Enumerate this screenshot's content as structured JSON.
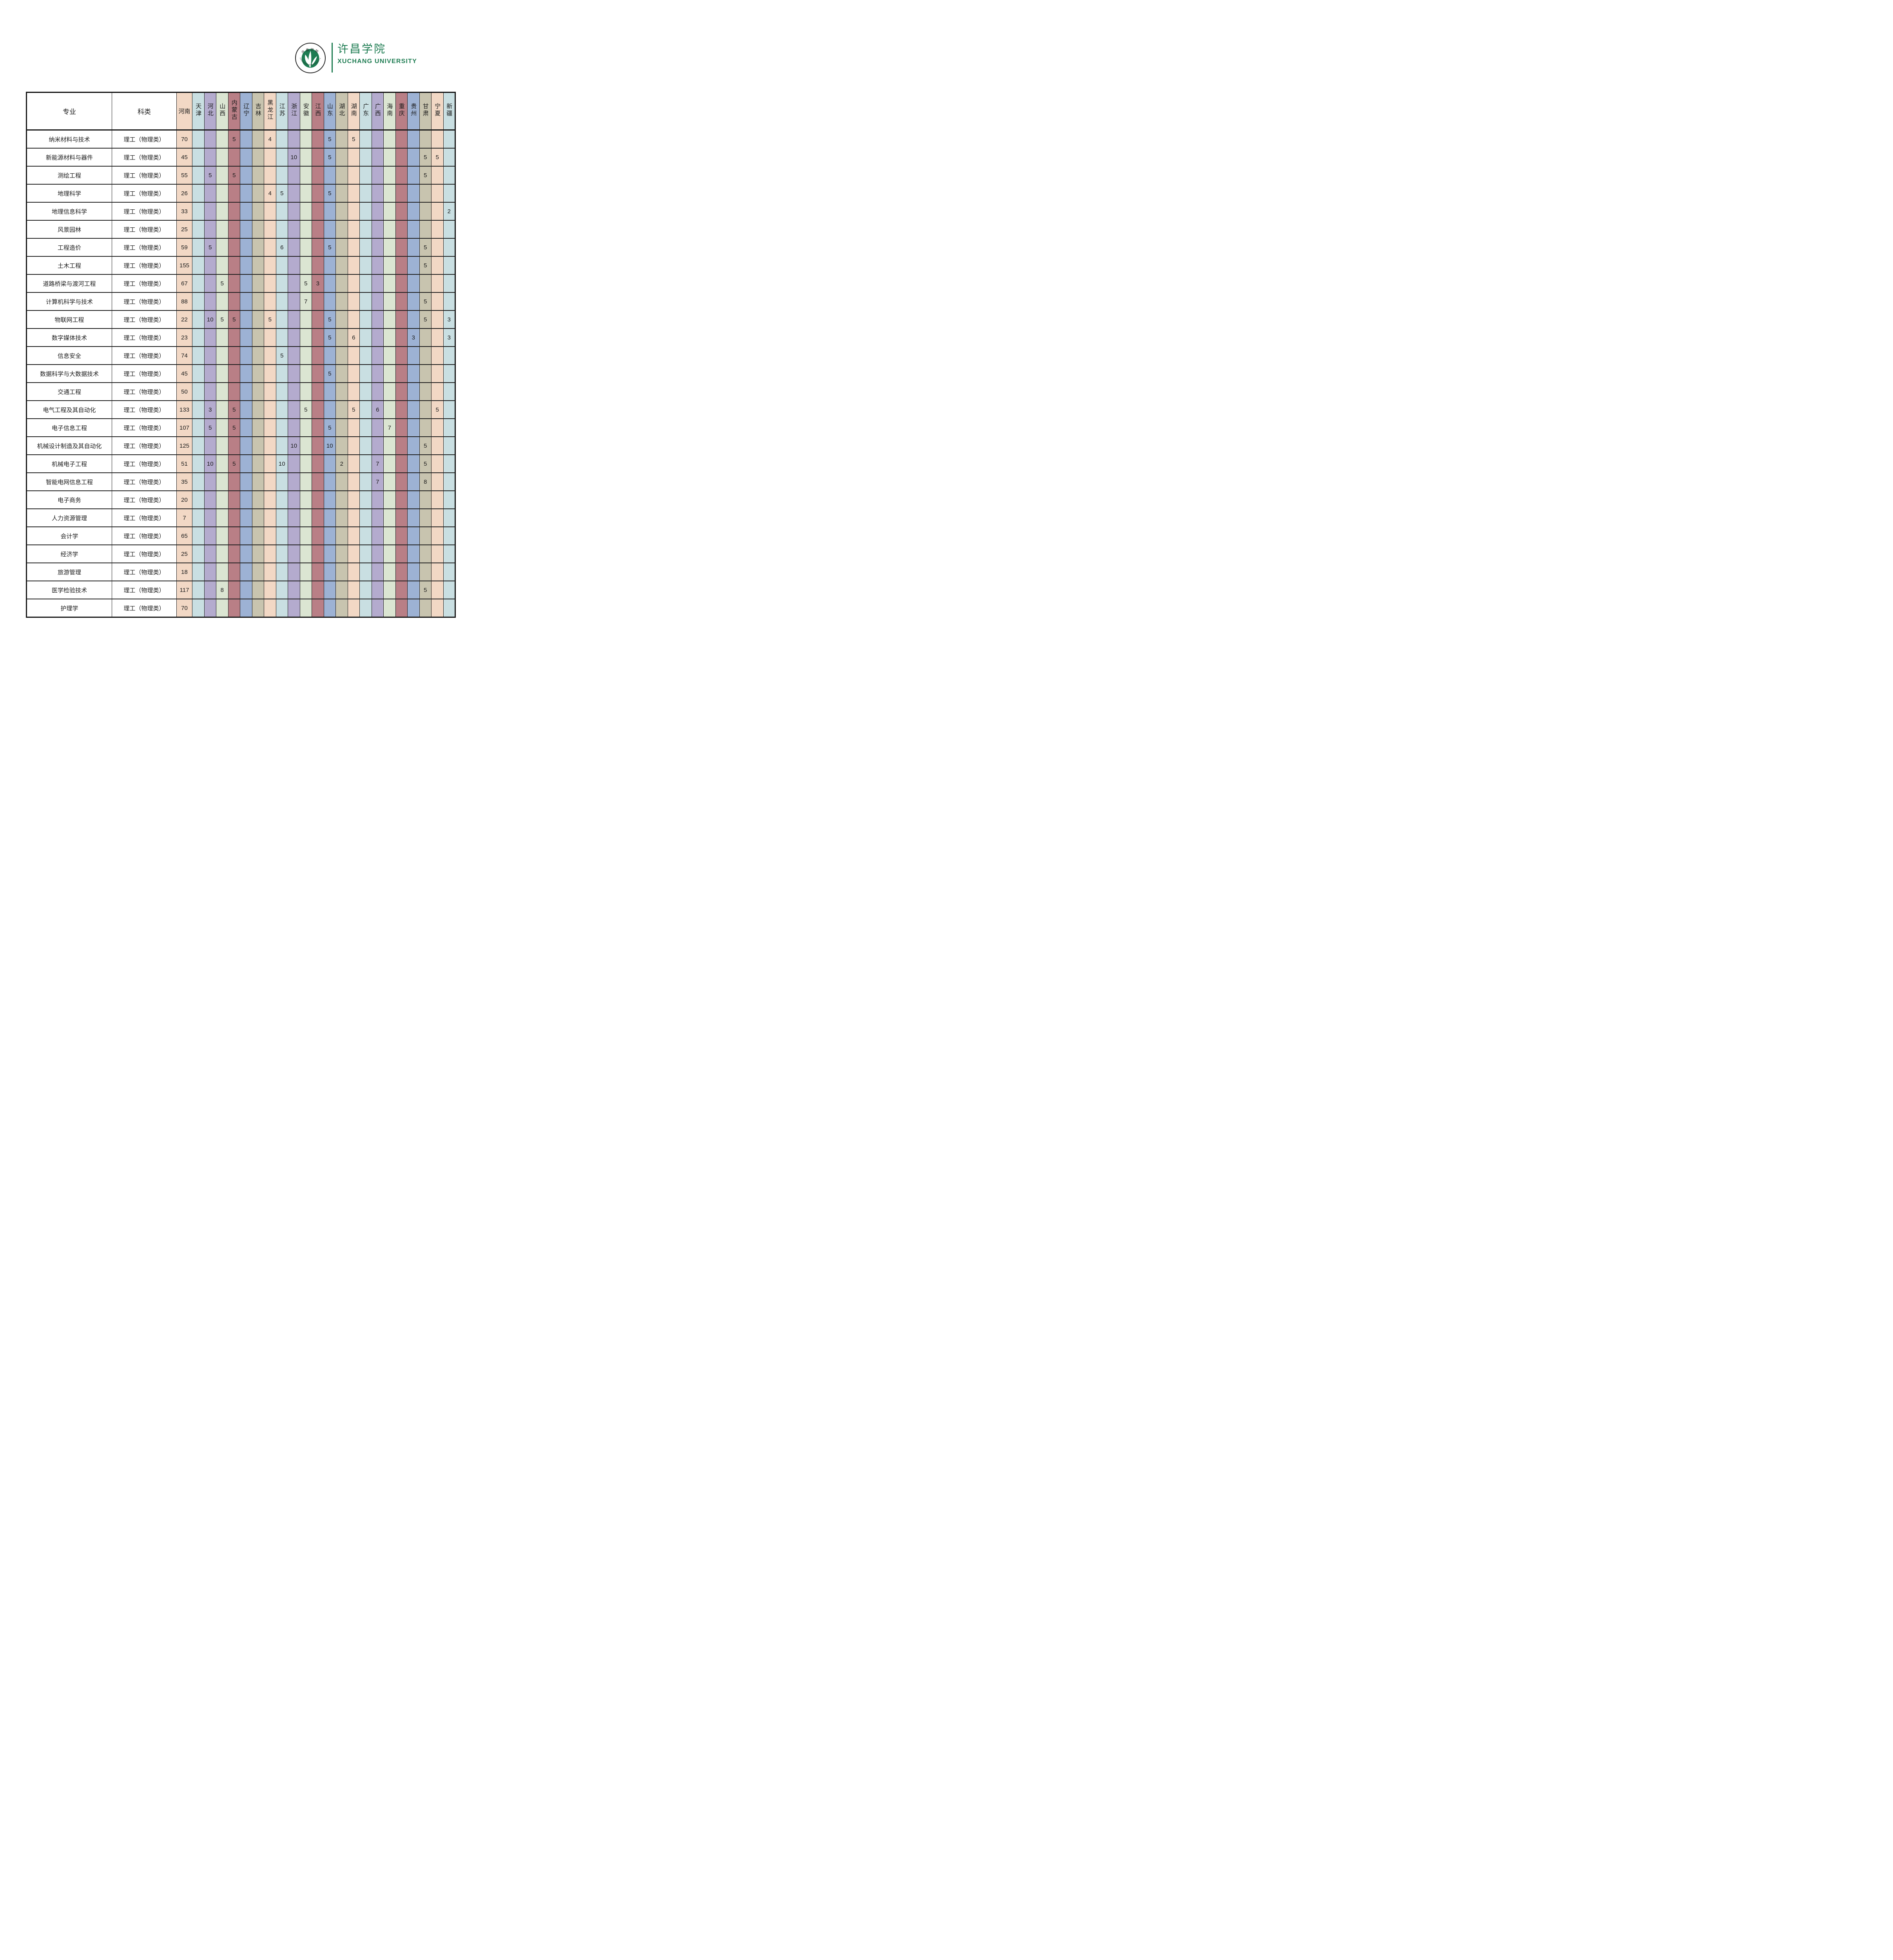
{
  "logo": {
    "university_name_zh": "许昌学院",
    "university_name_en": "XUCHANG UNIVERSITY",
    "seal_text_top": "许昌学院",
    "seal_text_bottom": "XUCHANG UNIVERSITY",
    "brand_green": "#1e7c52"
  },
  "table": {
    "headers": {
      "major": "专业",
      "category": "科类"
    },
    "palette": {
      "peach": "#f2d8c5",
      "cyan": "#c9dfe2",
      "purple": "#b4abce",
      "green": "#dbe5d2",
      "red": "#b97f86",
      "blue": "#9db2d4",
      "khaki": "#c8c4af"
    },
    "grid_color": "#1e1e1e",
    "provinces": [
      {
        "name": "河南",
        "color": "peach",
        "wide": true
      },
      {
        "name": "天津",
        "color": "cyan"
      },
      {
        "name": "河北",
        "color": "purple"
      },
      {
        "name": "山西",
        "color": "green"
      },
      {
        "name": "内蒙古",
        "color": "red"
      },
      {
        "name": "辽宁",
        "color": "blue"
      },
      {
        "name": "吉林",
        "color": "khaki"
      },
      {
        "name": "黑龙江",
        "color": "peach"
      },
      {
        "name": "江苏",
        "color": "cyan"
      },
      {
        "name": "浙江",
        "color": "purple"
      },
      {
        "name": "安徽",
        "color": "green"
      },
      {
        "name": "江西",
        "color": "red"
      },
      {
        "name": "山东",
        "color": "blue"
      },
      {
        "name": "湖北",
        "color": "khaki"
      },
      {
        "name": "湖南",
        "color": "peach"
      },
      {
        "name": "广东",
        "color": "cyan"
      },
      {
        "name": "广西",
        "color": "purple"
      },
      {
        "name": "海南",
        "color": "green"
      },
      {
        "name": "重庆",
        "color": "red"
      },
      {
        "name": "贵州",
        "color": "blue"
      },
      {
        "name": "甘肃",
        "color": "khaki"
      },
      {
        "name": "宁夏",
        "color": "peach"
      },
      {
        "name": "新疆",
        "color": "cyan"
      }
    ],
    "rows": [
      {
        "major": "纳米材料与技术",
        "category": "理工（物理类）",
        "values": {
          "河南": 70,
          "内蒙古": 5,
          "黑龙江": 4,
          "山东": 5,
          "湖南": 5
        }
      },
      {
        "major": "新能源材料与器件",
        "category": "理工（物理类）",
        "values": {
          "河南": 45,
          "浙江": 10,
          "山东": 5,
          "甘肃": 5,
          "宁夏": 5
        }
      },
      {
        "major": "测绘工程",
        "category": "理工（物理类）",
        "values": {
          "河南": 55,
          "河北": 5,
          "内蒙古": 5,
          "甘肃": 5
        }
      },
      {
        "major": "地理科学",
        "category": "理工（物理类）",
        "values": {
          "河南": 26,
          "黑龙江": 4,
          "江苏": 5,
          "山东": 5
        }
      },
      {
        "major": "地理信息科学",
        "category": "理工（物理类）",
        "values": {
          "河南": 33,
          "新疆": 2
        }
      },
      {
        "major": "风景园林",
        "category": "理工（物理类）",
        "values": {
          "河南": 25
        }
      },
      {
        "major": "工程造价",
        "category": "理工（物理类）",
        "values": {
          "河南": 59,
          "河北": 5,
          "江苏": 6,
          "山东": 5,
          "甘肃": 5
        }
      },
      {
        "major": "土木工程",
        "category": "理工（物理类）",
        "values": {
          "河南": 155,
          "甘肃": 5
        }
      },
      {
        "major": "道路桥梁与渡河工程",
        "category": "理工（物理类）",
        "values": {
          "河南": 67,
          "山西": 5,
          "安徽": 5,
          "江西": 3
        }
      },
      {
        "major": "计算机科学与技术",
        "category": "理工（物理类）",
        "values": {
          "河南": 88,
          "安徽": 7,
          "甘肃": 5
        }
      },
      {
        "major": "物联网工程",
        "category": "理工（物理类）",
        "values": {
          "河南": 22,
          "河北": 10,
          "山西": 5,
          "内蒙古": 5,
          "黑龙江": 5,
          "山东": 5,
          "甘肃": 5,
          "新疆": 3
        }
      },
      {
        "major": "数字媒体技术",
        "category": "理工（物理类）",
        "values": {
          "河南": 23,
          "山东": 5,
          "湖南": 6,
          "贵州": 3,
          "新疆": 3
        }
      },
      {
        "major": "信息安全",
        "category": "理工（物理类）",
        "values": {
          "河南": 74,
          "江苏": 5
        }
      },
      {
        "major": "数据科学与大数据技术",
        "category": "理工（物理类）",
        "values": {
          "河南": 45,
          "山东": 5
        }
      },
      {
        "major": "交通工程",
        "category": "理工（物理类）",
        "values": {
          "河南": 50
        }
      },
      {
        "major": "电气工程及其自动化",
        "category": "理工（物理类）",
        "values": {
          "河南": 133,
          "河北": 3,
          "内蒙古": 5,
          "安徽": 5,
          "湖南": 5,
          "广西": 6,
          "宁夏": 5
        }
      },
      {
        "major": "电子信息工程",
        "category": "理工（物理类）",
        "values": {
          "河南": 107,
          "河北": 5,
          "内蒙古": 5,
          "山东": 5,
          "海南": 7
        }
      },
      {
        "major": "机械设计制造及其自动化",
        "category": "理工（物理类）",
        "values": {
          "河南": 125,
          "浙江": 10,
          "山东": 10,
          "甘肃": 5
        }
      },
      {
        "major": "机械电子工程",
        "category": "理工（物理类）",
        "values": {
          "河南": 51,
          "河北": 10,
          "内蒙古": 5,
          "江苏": 10,
          "湖北": 2,
          "广西": 7,
          "甘肃": 5
        }
      },
      {
        "major": "智能电网信息工程",
        "category": "理工（物理类）",
        "values": {
          "河南": 35,
          "广西": 7,
          "甘肃": 8
        }
      },
      {
        "major": "电子商务",
        "category": "理工（物理类）",
        "values": {
          "河南": 20
        }
      },
      {
        "major": "人力资源管理",
        "category": "理工（物理类）",
        "values": {
          "河南": 7
        }
      },
      {
        "major": "会计学",
        "category": "理工（物理类）",
        "values": {
          "河南": 65
        }
      },
      {
        "major": "经济学",
        "category": "理工（物理类）",
        "values": {
          "河南": 25
        }
      },
      {
        "major": "旅游管理",
        "category": "理工（物理类）",
        "values": {
          "河南": 18
        }
      },
      {
        "major": "医学检验技术",
        "category": "理工（物理类）",
        "values": {
          "河南": 117,
          "山西": 8,
          "甘肃": 5
        }
      },
      {
        "major": "护理学",
        "category": "理工（物理类）",
        "values": {
          "河南": 70
        }
      }
    ]
  }
}
